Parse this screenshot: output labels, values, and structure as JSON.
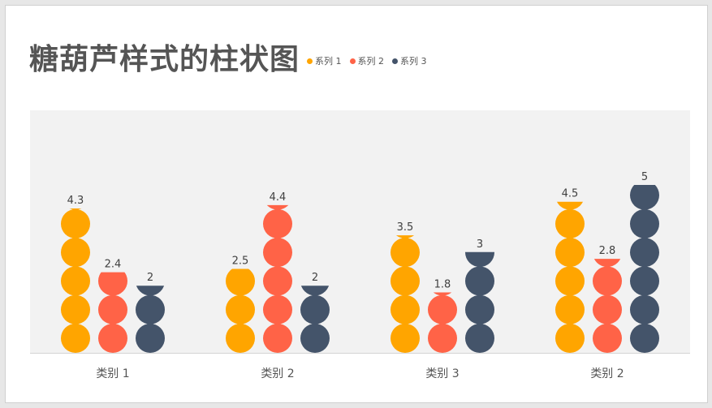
{
  "title": "糖葫芦样式的柱状图",
  "chart_data": {
    "type": "bar",
    "style": "stacked circles (candied hawthorn)",
    "categories": [
      "类别 1",
      "类别 2",
      "类别 3",
      "类别 2"
    ],
    "series": [
      {
        "name": "系列 1",
        "color": "#FFA500",
        "values": [
          4.3,
          2.5,
          3.5,
          4.5
        ]
      },
      {
        "name": "系列 2",
        "color": "#FF6347",
        "values": [
          2.4,
          4.4,
          1.8,
          2.8
        ]
      },
      {
        "name": "系列 3",
        "color": "#44546A",
        "values": [
          2,
          2,
          3,
          5
        ]
      }
    ],
    "ylim": [
      0,
      5.0
    ],
    "plot_background": "#F2F2F2",
    "legend_position": "top, next to title"
  }
}
